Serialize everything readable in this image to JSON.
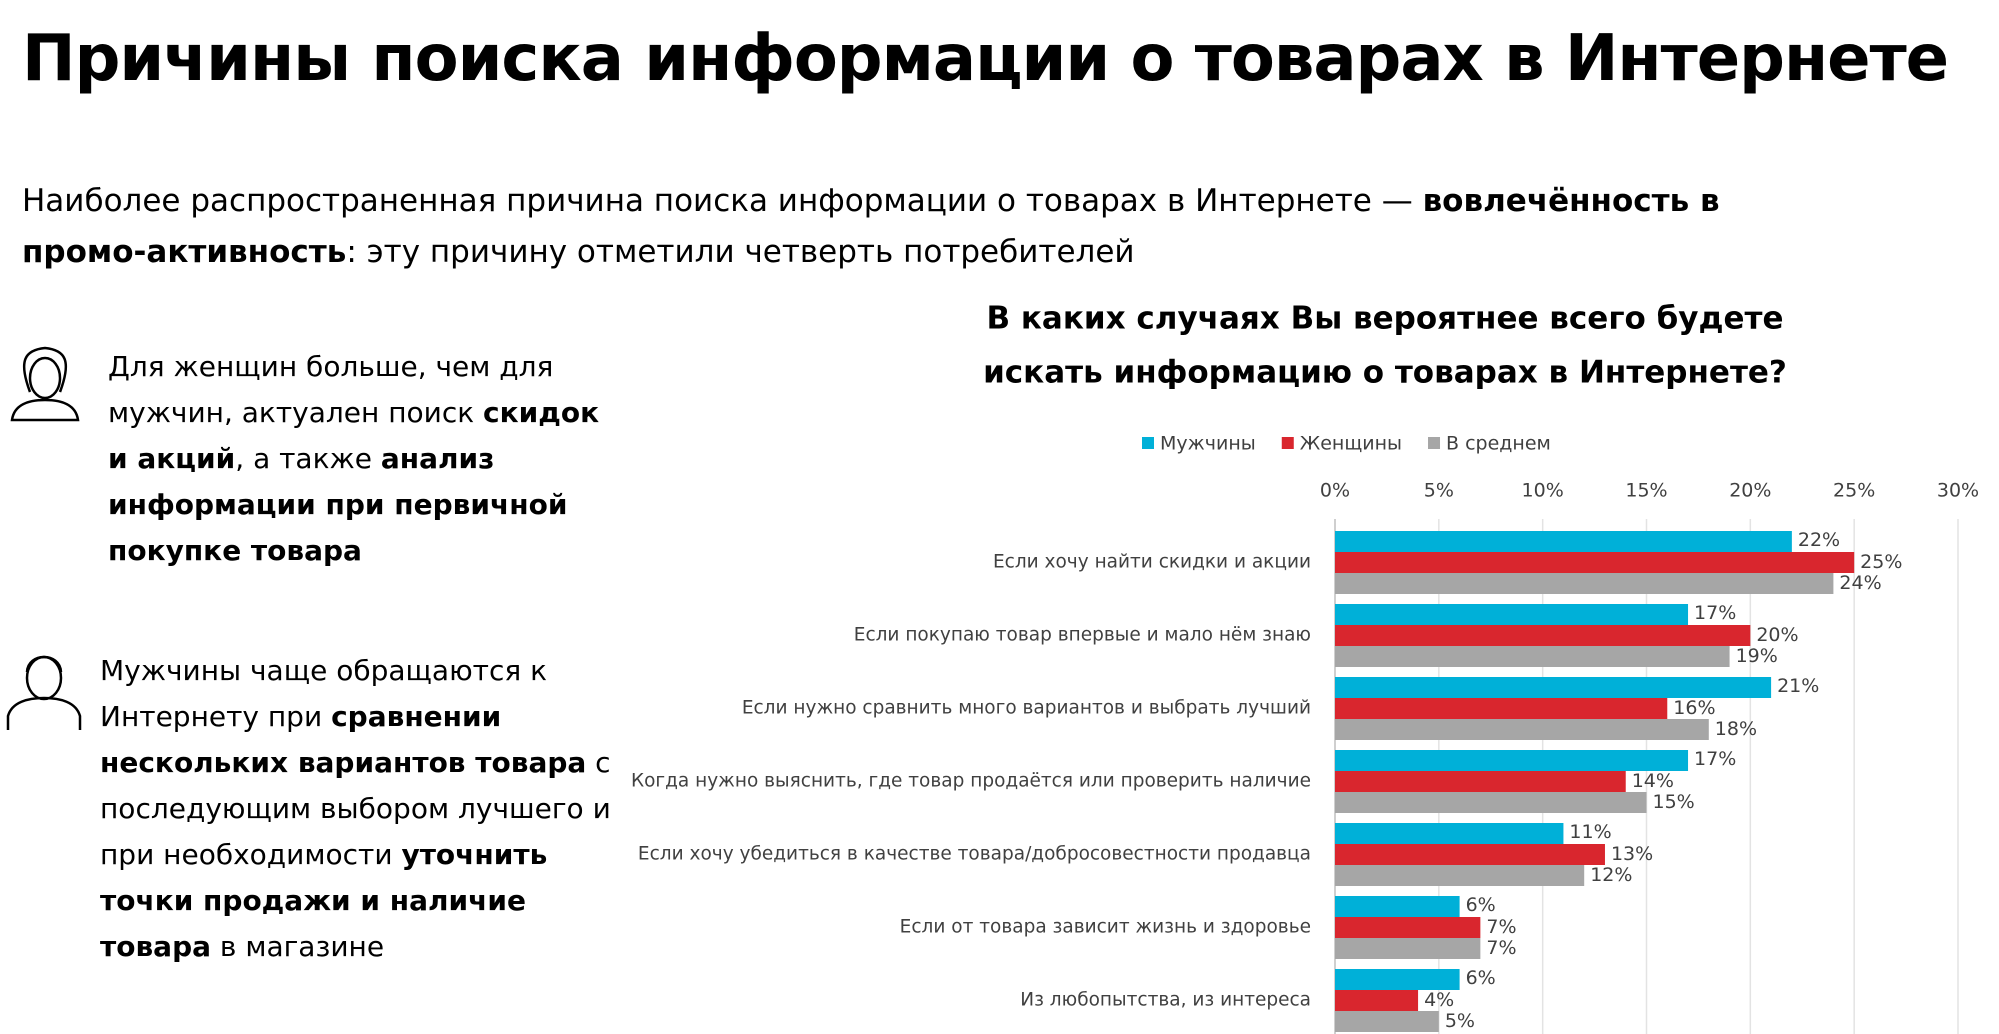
{
  "title": "Причины поиска информации о товарах в Интернете",
  "subtitle": [
    {
      "text": "Наиболее распространенная причина поиска информации о товарах в Интернете — ",
      "bold": false
    },
    {
      "text": "вовлечённость в промо-активность",
      "bold": true
    },
    {
      "text": ": эту причину отметили четверть потребителей",
      "bold": false
    }
  ],
  "notes": [
    [
      {
        "text": "Для женщин больше, чем для мужчин, актуален поиск ",
        "bold": false
      },
      {
        "text": "скидок и акций",
        "bold": true
      },
      {
        "text": ", а также ",
        "bold": false
      },
      {
        "text": "анализ информации при первичной покупке товара",
        "bold": true
      }
    ],
    [
      {
        "text": "Мужчины чаще обращаются к Интернету при ",
        "bold": false
      },
      {
        "text": "сравнении нескольких вариантов товара",
        "bold": true
      },
      {
        "text": " с последующим выбором лучшего и при необходимости ",
        "bold": false
      },
      {
        "text": "уточнить точки продажи и наличие товара",
        "bold": true
      },
      {
        "text": " в магазине",
        "bold": false
      }
    ]
  ],
  "chart_data": {
    "type": "hbar",
    "title": [
      "В каких случаях Вы вероятнее всего будете",
      "искать информацию о товарах в Интернете?"
    ],
    "categories": [
      "Если хочу найти скидки и акции",
      "Если покупаю товар впервые и мало  нём знаю",
      "Если нужно сравнить много вариантов и выбрать лучший",
      "Когда нужно выяснить, где товар продаётся или проверить наличие",
      "Если хочу убедиться в качестве товара/добросовестности продавца",
      "Если от товара зависит жизнь и здоровье",
      "Из любопытства, из интереса"
    ],
    "series": [
      {
        "name": "Мужчины",
        "color": "#00b0d8",
        "values": [
          22,
          17,
          21,
          17,
          11,
          6,
          6
        ],
        "value_labels": [
          "22%",
          "17%",
          "21%",
          "17%",
          "11%",
          "6%",
          "6%"
        ]
      },
      {
        "name": "Женщины",
        "color": "#d9262e",
        "values": [
          25,
          20,
          16,
          14,
          13,
          7,
          4
        ],
        "value_labels": [
          "25%",
          "20%",
          "16%",
          "14%",
          "13%",
          "7%",
          "4%"
        ]
      },
      {
        "name": "В среднем",
        "color": "#a6a6a6",
        "values": [
          24,
          19,
          18,
          15,
          12,
          7,
          5
        ],
        "value_labels": [
          "24%",
          "19%",
          "18%",
          "15%",
          "12%",
          "7%",
          "5%"
        ]
      }
    ],
    "xlim": [
      0,
      30
    ],
    "xticks": [
      {
        "value": 0,
        "label": "0%"
      },
      {
        "value": 5,
        "label": "5%"
      },
      {
        "value": 10,
        "label": "10%"
      },
      {
        "value": 15,
        "label": "15%"
      },
      {
        "value": 20,
        "label": "20%"
      },
      {
        "value": 25,
        "label": "25%"
      },
      {
        "value": 30,
        "label": "30%"
      }
    ],
    "grid": true,
    "legend": "top"
  }
}
